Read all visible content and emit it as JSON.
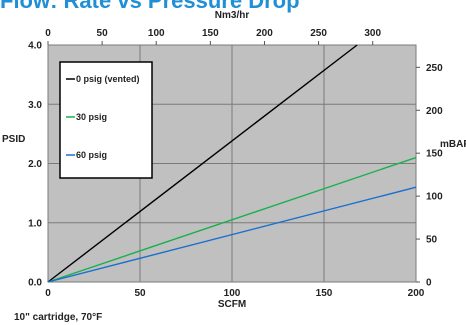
{
  "chart_data": {
    "type": "line",
    "title": "Flow: Rate vs Pressure Drop",
    "xlabel": "SCFM",
    "ylabel": "PSID",
    "x2label": "Nm3/hr",
    "y2label": "mBAR",
    "footnote": "10\" cartridge, 70°F",
    "xlim": [
      0,
      200
    ],
    "ylim": [
      0,
      4.0
    ],
    "x2lim": [
      0,
      340
    ],
    "y2lim": [
      0,
      276
    ],
    "x_ticks": [
      "0",
      "50",
      "100",
      "150",
      "200"
    ],
    "y_ticks": [
      "0.0",
      "1.0",
      "2.0",
      "3.0",
      "4.0"
    ],
    "x2_ticks": [
      "0",
      "50",
      "100",
      "150",
      "200",
      "250",
      "300"
    ],
    "y2_ticks": [
      "0",
      "50",
      "100",
      "150",
      "200",
      "250"
    ],
    "grid": true,
    "legend": "top-left",
    "series": [
      {
        "name": "0 psig (vented)",
        "color": "#000000",
        "x": [
          0,
          168
        ],
        "y": [
          0,
          4.0
        ]
      },
      {
        "name": "30 psig",
        "color": "#19b050",
        "x": [
          0,
          200
        ],
        "y": [
          0,
          2.1
        ]
      },
      {
        "name": "60 psig",
        "color": "#1a6fcf",
        "x": [
          0,
          200
        ],
        "y": [
          0,
          1.6
        ]
      }
    ]
  }
}
